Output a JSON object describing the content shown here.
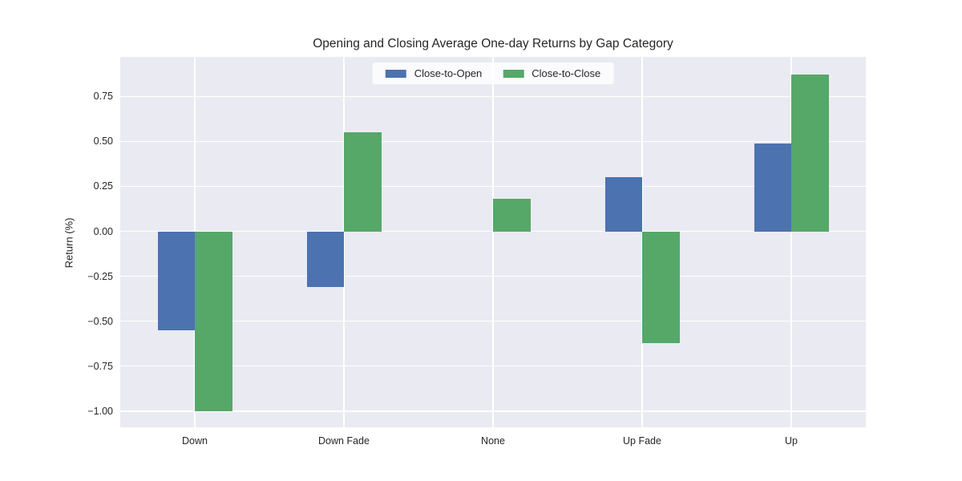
{
  "figure": {
    "background": "#ffffff"
  },
  "chart_data": {
    "type": "bar",
    "title": "Opening and Closing Average One-day Returns by Gap Category",
    "xlabel": "",
    "ylabel": "Return (%)",
    "categories": [
      "Down",
      "Down Fade",
      "None",
      "Up Fade",
      "Up"
    ],
    "series": [
      {
        "name": "Close-to-Open",
        "color": "#4c72b0",
        "values": [
          -0.55,
          -0.31,
          0.0,
          0.3,
          0.49
        ]
      },
      {
        "name": "Close-to-Close",
        "color": "#55a868",
        "values": [
          -1.0,
          0.55,
          0.18,
          -0.62,
          0.87
        ]
      }
    ],
    "ylim": [
      -1.09,
      0.97
    ],
    "yticks": [
      0.75,
      0.5,
      0.25,
      0.0,
      -0.25,
      -0.5,
      -0.75,
      -1.0
    ],
    "ytick_labels": [
      "0.75",
      "0.50",
      "0.25",
      "0.00",
      "−0.25",
      "−0.50",
      "−0.75",
      "−1.00"
    ],
    "grid": true,
    "legend_position": "upper center",
    "style": {
      "plot_background": "#eaeaf2",
      "grid_color": "#ffffff",
      "text_color": "#262626",
      "legend_background": "rgba(255,255,255,0.8)"
    }
  }
}
